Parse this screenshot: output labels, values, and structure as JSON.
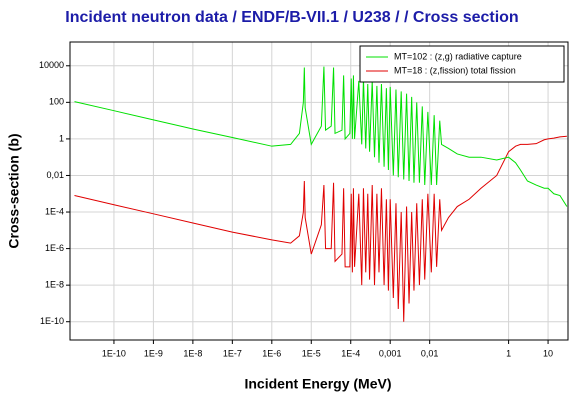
{
  "chart_data": {
    "type": "line",
    "title": "Incident neutron data / ENDF/B-VII.1 / U238 / / Cross section",
    "x_label": "Incident Energy (MeV)",
    "y_label": "Cross-section (b)",
    "xscale": "log",
    "yscale": "log",
    "grid": true,
    "legend": "upper right",
    "xlim": [
      7.7e-12,
      32
    ],
    "ylim": [
      1e-11,
      200000
    ],
    "xticks": [
      {
        "value": 1e-10,
        "label": "1E-10"
      },
      {
        "value": 1e-09,
        "label": "1E-9"
      },
      {
        "value": 1e-08,
        "label": "1E-8"
      },
      {
        "value": 1e-07,
        "label": "1E-7"
      },
      {
        "value": 1e-06,
        "label": "1E-6"
      },
      {
        "value": 1e-05,
        "label": "1E-5"
      },
      {
        "value": 0.0001,
        "label": "1E-4"
      },
      {
        "value": 0.001,
        "label": "0,001"
      },
      {
        "value": 0.01,
        "label": "0,01"
      },
      1,
      10
    ],
    "yticks": [
      10000,
      100,
      1,
      {
        "value": 0.01,
        "label": "0,01"
      },
      {
        "value": 0.0001,
        "label": "1E-4"
      },
      {
        "value": 1e-06,
        "label": "1E-6"
      },
      {
        "value": 1e-08,
        "label": "1E-8"
      },
      {
        "value": 1e-10,
        "label": "1E-10"
      }
    ],
    "x": [
      1e-11,
      1e-10,
      1e-09,
      1e-08,
      1e-07,
      1e-06,
      3e-06,
      5e-06,
      6.3e-06,
      6.67e-06,
      7e-06,
      1e-05,
      1.8e-05,
      2.09e-05,
      2.3e-05,
      3.2e-05,
      3.67e-05,
      4e-05,
      6e-05,
      6.6e-05,
      7.2e-05,
      9.5e-05,
      0.000103,
      0.00011,
      0.000117,
      0.000125,
      0.00016,
      0.00019,
      0.00021,
      0.00024,
      0.00027,
      0.0003,
      0.00035,
      0.0004,
      0.00046,
      0.00052,
      0.0006,
      0.0007,
      0.0008,
      0.0009,
      0.001,
      0.0012,
      0.0014,
      0.0016,
      0.0019,
      0.0022,
      0.0026,
      0.003,
      0.0035,
      0.004,
      0.0047,
      0.0055,
      0.0065,
      0.0075,
      0.009,
      0.011,
      0.013,
      0.015,
      0.018,
      0.02,
      0.03,
      0.05,
      0.1,
      0.2,
      0.5,
      1,
      1.5,
      2,
      3,
      5,
      8,
      10,
      14,
      20,
      30
    ],
    "series": [
      {
        "name": "MT=102 : (z,g) radiative capture",
        "color": "#00e000",
        "values": [
          110,
          35,
          11,
          3.5,
          1.2,
          0.4,
          0.5,
          2,
          100,
          8000,
          50,
          0.5,
          5,
          9000,
          3,
          5,
          8000,
          2,
          3,
          3000,
          1,
          2,
          2000,
          1,
          3000,
          1,
          1500,
          0.5,
          2000,
          0.3,
          1000,
          0.2,
          1500,
          0.1,
          800,
          0.05,
          1000,
          0.03,
          600,
          0.02,
          700,
          0.01,
          500,
          0.008,
          400,
          0.006,
          300,
          0.005,
          200,
          0.004,
          100,
          0.004,
          60,
          0.003,
          30,
          0.003,
          20,
          0.003,
          10,
          0.5,
          0.3,
          0.15,
          0.1,
          0.1,
          0.07,
          0.1,
          0.05,
          0.02,
          0.005,
          0.003,
          0.002,
          0.002,
          0.001,
          0.0008,
          0.0002
        ]
      },
      {
        "name": "MT=18 : (z,fission) total fission",
        "color": "#e00000",
        "values": [
          0.0008,
          0.00025,
          8e-05,
          2.5e-05,
          8e-06,
          3e-06,
          2e-06,
          5e-06,
          0.0001,
          0.005,
          5e-05,
          5e-07,
          2e-05,
          0.003,
          1e-06,
          1e-06,
          0.004,
          2e-07,
          5e-07,
          0.002,
          1e-07,
          1e-07,
          0.001,
          5e-08,
          0.002,
          1e-07,
          0.001,
          1e-08,
          0.002,
          5e-08,
          0.001,
          2e-08,
          0.003,
          1e-08,
          0.001,
          5e-08,
          0.002,
          1e-08,
          0.0005,
          5e-09,
          0.0005,
          2e-09,
          0.0003,
          5e-10,
          0.0001,
          1e-10,
          0.0002,
          1e-09,
          0.0001,
          5e-09,
          0.0003,
          1e-08,
          0.0005,
          2e-08,
          0.001,
          5e-08,
          0.001,
          1e-07,
          0.0005,
          1e-05,
          5e-05,
          0.0002,
          0.0005,
          0.002,
          0.01,
          0.2,
          0.4,
          0.5,
          0.5,
          0.55,
          0.9,
          1,
          1.1,
          1.3,
          1.4
        ]
      }
    ]
  }
}
